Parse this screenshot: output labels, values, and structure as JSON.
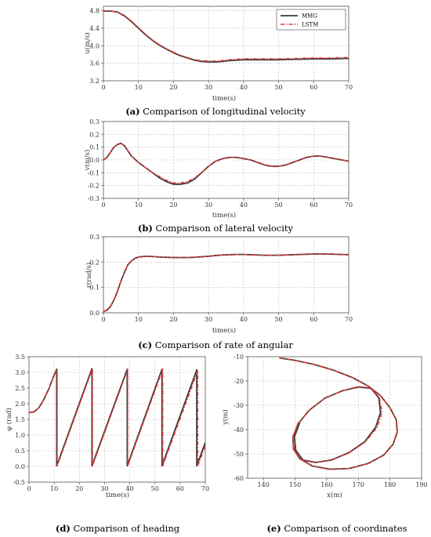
{
  "colors": {
    "mmg": "#3a3a3a",
    "lstm": "#e53935"
  },
  "chart_data": [
    {
      "id": "a",
      "type": "line",
      "caption": {
        "letter": "(a)",
        "text": " Comparison of  longitudinal velocity"
      },
      "xlabel": "time(s)",
      "ylabel": "u(m/s)",
      "xlim": [
        0,
        70
      ],
      "ylim": [
        3.2,
        4.9
      ],
      "xticks": [
        0,
        10,
        20,
        30,
        40,
        50,
        60,
        70
      ],
      "yticks": [
        3.2,
        3.6,
        4.0,
        4.4,
        4.8
      ],
      "ytick_labels": [
        "3.2",
        "3.6",
        "4.0",
        "4.4",
        "4.8"
      ],
      "grid": true,
      "legend": {
        "position": "top-right",
        "entries": [
          "MMG",
          "LSTM"
        ]
      },
      "series": [
        {
          "name": "MMG",
          "style": "solid",
          "x": [
            0,
            2,
            4,
            6,
            8,
            10,
            12,
            14,
            16,
            18,
            20,
            22,
            24,
            26,
            28,
            30,
            32,
            34,
            36,
            38,
            40,
            45,
            50,
            55,
            60,
            65,
            70
          ],
          "y": [
            4.79,
            4.79,
            4.77,
            4.68,
            4.55,
            4.4,
            4.25,
            4.12,
            4.01,
            3.92,
            3.84,
            3.77,
            3.72,
            3.67,
            3.64,
            3.63,
            3.63,
            3.64,
            3.66,
            3.67,
            3.68,
            3.68,
            3.68,
            3.69,
            3.7,
            3.7,
            3.71
          ]
        },
        {
          "name": "LSTM",
          "style": "dashdot",
          "x": [
            0,
            2,
            4,
            6,
            8,
            10,
            12,
            14,
            16,
            18,
            20,
            22,
            24,
            26,
            28,
            30,
            32,
            34,
            36,
            38,
            40,
            45,
            50,
            55,
            60,
            65,
            70
          ],
          "y": [
            4.8,
            4.79,
            4.77,
            4.69,
            4.56,
            4.41,
            4.26,
            4.13,
            4.02,
            3.93,
            3.85,
            3.78,
            3.73,
            3.68,
            3.66,
            3.65,
            3.65,
            3.66,
            3.68,
            3.69,
            3.7,
            3.7,
            3.7,
            3.71,
            3.72,
            3.72,
            3.73
          ]
        }
      ]
    },
    {
      "id": "b",
      "type": "line",
      "caption": {
        "letter": "(b)",
        "text": " Comparison of  lateral velocity"
      },
      "xlabel": "time(s)",
      "ylabel": "v(m/s)",
      "xlim": [
        0,
        70
      ],
      "ylim": [
        -0.3,
        0.3
      ],
      "xticks": [
        0,
        10,
        20,
        30,
        40,
        50,
        60,
        70
      ],
      "yticks": [
        -0.3,
        -0.2,
        -0.1,
        0.0,
        0.1,
        0.2,
        0.3
      ],
      "ytick_labels": [
        "-0.3",
        "-0.2",
        "-0.1",
        "0.0",
        "0.1",
        "0.2",
        "0.3"
      ],
      "grid": true,
      "series": [
        {
          "name": "MMG",
          "style": "solid",
          "x": [
            0,
            1,
            2,
            3,
            4,
            5,
            6,
            7,
            8,
            10,
            12,
            14,
            16,
            18,
            20,
            22,
            24,
            26,
            28,
            30,
            32,
            34,
            36,
            38,
            40,
            42,
            44,
            46,
            48,
            50,
            52,
            54,
            56,
            58,
            60,
            62,
            64,
            66,
            68,
            70
          ],
          "y": [
            0.0,
            0.02,
            0.06,
            0.1,
            0.12,
            0.13,
            0.11,
            0.07,
            0.03,
            -0.02,
            -0.06,
            -0.1,
            -0.14,
            -0.17,
            -0.19,
            -0.19,
            -0.18,
            -0.15,
            -0.1,
            -0.05,
            -0.01,
            0.01,
            0.02,
            0.02,
            0.01,
            0.0,
            -0.02,
            -0.04,
            -0.05,
            -0.05,
            -0.04,
            -0.02,
            0.0,
            0.02,
            0.03,
            0.03,
            0.02,
            0.01,
            0.0,
            -0.01
          ]
        },
        {
          "name": "LSTM",
          "style": "dashdot",
          "x": [
            0,
            1,
            2,
            3,
            4,
            5,
            6,
            7,
            8,
            10,
            12,
            14,
            16,
            18,
            20,
            22,
            24,
            26,
            28,
            30,
            32,
            34,
            36,
            38,
            40,
            42,
            44,
            46,
            48,
            50,
            52,
            54,
            56,
            58,
            60,
            62,
            64,
            66,
            68,
            70
          ],
          "y": [
            0.0,
            0.02,
            0.06,
            0.1,
            0.12,
            0.13,
            0.11,
            0.07,
            0.03,
            -0.02,
            -0.06,
            -0.1,
            -0.13,
            -0.16,
            -0.18,
            -0.18,
            -0.17,
            -0.14,
            -0.1,
            -0.05,
            -0.01,
            0.01,
            0.02,
            0.02,
            0.01,
            0.0,
            -0.02,
            -0.04,
            -0.05,
            -0.05,
            -0.04,
            -0.02,
            0.0,
            0.02,
            0.03,
            0.03,
            0.02,
            0.01,
            0.0,
            -0.01
          ]
        }
      ]
    },
    {
      "id": "c",
      "type": "line",
      "caption": {
        "letter": "(c)",
        "text": " Comparison of rate of angular"
      },
      "xlabel": "time(s)",
      "ylabel": "r(rad/s)",
      "xlim": [
        0,
        70
      ],
      "ylim": [
        0.0,
        0.3
      ],
      "xticks": [
        0,
        10,
        20,
        30,
        40,
        50,
        60,
        70
      ],
      "yticks": [
        0.0,
        0.1,
        0.2,
        0.3
      ],
      "ytick_labels": [
        "0.0",
        "0.1",
        "0.2",
        "0.3"
      ],
      "grid": true,
      "series": [
        {
          "name": "MMG",
          "style": "solid",
          "x": [
            0,
            1,
            2,
            3,
            4,
            5,
            6,
            7,
            8,
            9,
            10,
            12,
            14,
            16,
            18,
            20,
            22,
            24,
            26,
            28,
            30,
            32,
            34,
            36,
            38,
            40,
            42,
            44,
            46,
            48,
            50,
            52,
            54,
            56,
            58,
            60,
            62,
            64,
            66,
            68,
            70
          ],
          "y": [
            0.005,
            0.01,
            0.025,
            0.05,
            0.085,
            0.125,
            0.16,
            0.19,
            0.205,
            0.215,
            0.22,
            0.223,
            0.222,
            0.22,
            0.219,
            0.218,
            0.218,
            0.218,
            0.219,
            0.221,
            0.223,
            0.226,
            0.228,
            0.229,
            0.23,
            0.23,
            0.229,
            0.228,
            0.227,
            0.227,
            0.227,
            0.228,
            0.229,
            0.23,
            0.231,
            0.232,
            0.232,
            0.232,
            0.231,
            0.23,
            0.229
          ]
        },
        {
          "name": "LSTM",
          "style": "dashdot",
          "x": [
            0,
            1,
            2,
            3,
            4,
            5,
            6,
            7,
            8,
            9,
            10,
            12,
            14,
            16,
            18,
            20,
            22,
            24,
            26,
            28,
            30,
            32,
            34,
            36,
            38,
            40,
            42,
            44,
            46,
            48,
            50,
            52,
            54,
            56,
            58,
            60,
            62,
            64,
            66,
            68,
            70
          ],
          "y": [
            0.005,
            0.01,
            0.025,
            0.05,
            0.085,
            0.125,
            0.16,
            0.19,
            0.205,
            0.215,
            0.22,
            0.223,
            0.222,
            0.22,
            0.219,
            0.218,
            0.218,
            0.218,
            0.219,
            0.221,
            0.223,
            0.226,
            0.228,
            0.229,
            0.23,
            0.23,
            0.229,
            0.228,
            0.227,
            0.227,
            0.227,
            0.228,
            0.229,
            0.23,
            0.231,
            0.232,
            0.232,
            0.232,
            0.231,
            0.23,
            0.229
          ]
        }
      ]
    },
    {
      "id": "d",
      "type": "line",
      "caption": {
        "letter": "(d)",
        "text": " Comparison of heading"
      },
      "xlabel": "time(s)",
      "ylabel": "φ (rad)",
      "xlim": [
        0,
        70
      ],
      "ylim": [
        -0.5,
        3.5
      ],
      "xticks": [
        0,
        10,
        20,
        30,
        40,
        50,
        60,
        70
      ],
      "yticks": [
        -0.5,
        0.0,
        0.5,
        1.0,
        1.5,
        2.0,
        2.5,
        3.0,
        3.5
      ],
      "ytick_labels": [
        "-0.5",
        "0.0",
        "0.5",
        "1.0",
        "1.5",
        "2.0",
        "2.5",
        "3.0",
        "3.5"
      ],
      "grid": true,
      "series": [
        {
          "name": "MMG",
          "style": "solid",
          "x": [
            0,
            2,
            4,
            6,
            8,
            10,
            11.0,
            11.01,
            25.0,
            25.01,
            39.0,
            39.01,
            52.8,
            52.81,
            66.6,
            66.61,
            70
          ],
          "y": [
            1.72,
            1.74,
            1.88,
            2.15,
            2.5,
            2.92,
            3.1,
            0.02,
            3.12,
            0.02,
            3.1,
            0.02,
            3.1,
            0.02,
            3.08,
            0.02,
            0.76
          ]
        },
        {
          "name": "LSTM",
          "style": "dashdot",
          "x": [
            0,
            2,
            4,
            6,
            8,
            10,
            11.2,
            11.21,
            25.2,
            25.21,
            39.2,
            39.21,
            53.1,
            53.11,
            67.0,
            67.01,
            70
          ],
          "y": [
            1.72,
            1.74,
            1.88,
            2.15,
            2.5,
            2.92,
            3.1,
            0.02,
            3.12,
            0.02,
            3.1,
            0.02,
            3.1,
            0.02,
            3.05,
            0.02,
            0.65
          ]
        }
      ]
    },
    {
      "id": "e",
      "type": "line",
      "caption": {
        "letter": "(e)",
        "text": " Comparison of coordinates"
      },
      "xlabel": "x(m)",
      "ylabel": "y(m)",
      "xlim": [
        135,
        190
      ],
      "ylim": [
        -60,
        -10
      ],
      "xticks": [
        140,
        150,
        160,
        170,
        180,
        190
      ],
      "yticks": [
        -60,
        -50,
        -40,
        -30,
        -20,
        -10
      ],
      "ytick_labels": [
        "-60",
        "-50",
        "-40",
        "-30",
        "-20",
        "-10"
      ],
      "grid": true,
      "series": [
        {
          "name": "MMG",
          "style": "solid",
          "x": [
            145,
            150,
            156,
            162,
            168,
            173,
            177,
            180,
            182,
            182.3,
            181,
            178,
            173,
            167,
            161,
            155.5,
            151.5,
            149.5,
            149.3,
            151,
            154.5,
            159.5,
            165,
            170,
            174,
            176.5,
            177,
            175.5,
            172,
            167,
            161.5,
            156.5,
            152.5,
            150.2,
            149.8,
            151.5
          ],
          "y": [
            -10.5,
            -11.5,
            -13.2,
            -15.5,
            -18.5,
            -22,
            -26,
            -31,
            -36,
            -41,
            -46,
            -50.5,
            -54,
            -56,
            -56.3,
            -55,
            -52,
            -48,
            -43,
            -37.5,
            -32,
            -27,
            -24,
            -22.5,
            -23,
            -27,
            -33,
            -39,
            -45,
            -49.5,
            -52.5,
            -53.5,
            -52.5,
            -48.5,
            -43,
            -37
          ]
        },
        {
          "name": "LSTM",
          "style": "dashdot",
          "x": [
            145,
            150,
            156,
            162,
            168,
            173,
            177,
            180,
            182,
            182.3,
            181,
            178,
            173,
            167,
            161,
            155.5,
            151.5,
            149.5,
            149.3,
            151,
            154.5,
            159.5,
            165,
            170,
            174,
            176.7,
            177.5,
            176,
            172.3,
            167.2,
            161.5,
            156.3,
            152.2,
            149.8,
            149.4,
            151
          ],
          "y": [
            -10.5,
            -11.5,
            -13.2,
            -15.5,
            -18.5,
            -22,
            -26,
            -31,
            -36,
            -41,
            -46,
            -50.5,
            -54,
            -56,
            -56.4,
            -55.1,
            -52.1,
            -48,
            -43,
            -37.5,
            -32,
            -27,
            -24,
            -22.3,
            -22.8,
            -27,
            -33,
            -39,
            -45,
            -49.5,
            -52.6,
            -53.6,
            -52.6,
            -48.6,
            -43,
            -37
          ]
        }
      ]
    }
  ]
}
